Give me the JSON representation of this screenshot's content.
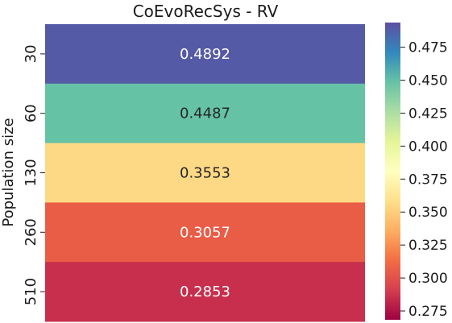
{
  "chart_data": {
    "type": "heatmap",
    "title": "CoEvoRecSys - RV",
    "ylabel": "Population size",
    "xlabel": "",
    "rows": [
      "30",
      "60",
      "130",
      "260",
      "510"
    ],
    "values": [
      0.4892,
      0.4487,
      0.3553,
      0.3057,
      0.2853
    ],
    "value_labels": [
      "0.4892",
      "0.4487",
      "0.3553",
      "0.3057",
      "0.2853"
    ],
    "colorbar": {
      "range": [
        0.2683,
        0.4937
      ],
      "ticks": [
        0.275,
        0.3,
        0.325,
        0.35,
        0.375,
        0.4,
        0.425,
        0.45,
        0.475
      ],
      "tick_labels": [
        "0.275",
        "0.300",
        "0.325",
        "0.350",
        "0.375",
        "0.400",
        "0.425",
        "0.450",
        "0.475"
      ],
      "colormap": "Spectral",
      "colormap_stops": [
        "#9e0142",
        "#d53e4f",
        "#f46d43",
        "#fdae61",
        "#fee08b",
        "#ffffbf",
        "#e6f598",
        "#abdda4",
        "#66c2a5",
        "#3288bd",
        "#5e4fa2"
      ]
    },
    "grid": false
  }
}
